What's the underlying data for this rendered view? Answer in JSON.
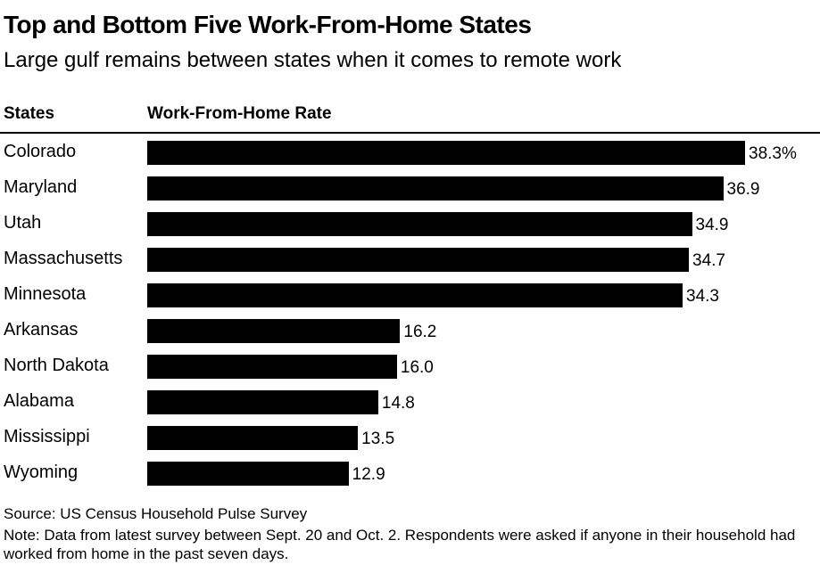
{
  "title": "Top and Bottom Five Work-From-Home States",
  "subtitle": "Large gulf remains between states when it comes to remote work",
  "column_headers": {
    "states": "States",
    "rate": "Work-From-Home Rate"
  },
  "chart_data": {
    "type": "bar",
    "orientation": "horizontal",
    "title": "Top and Bottom Five Work-From-Home States",
    "subtitle": "Large gulf remains between states when it comes to remote work",
    "categories": [
      "Colorado",
      "Maryland",
      "Utah",
      "Massachusetts",
      "Minnesota",
      "Arkansas",
      "North Dakota",
      "Alabama",
      "Mississippi",
      "Wyoming"
    ],
    "values": [
      38.3,
      36.9,
      34.9,
      34.7,
      34.3,
      16.2,
      16.0,
      14.8,
      13.5,
      12.9
    ],
    "value_labels": [
      "38.3%",
      "36.9",
      "34.9",
      "34.7",
      "34.3",
      "16.2",
      "16.0",
      "14.8",
      "13.5",
      "12.9"
    ],
    "xlim": [
      0,
      38.3
    ],
    "grid": false,
    "bar_color": "#000000"
  },
  "source": "Source: US Census Household Pulse Survey",
  "note": "Note: Data from latest survey between Sept. 20 and Oct. 2. Respondents were asked if anyone in their household had worked from home in the past seven days."
}
